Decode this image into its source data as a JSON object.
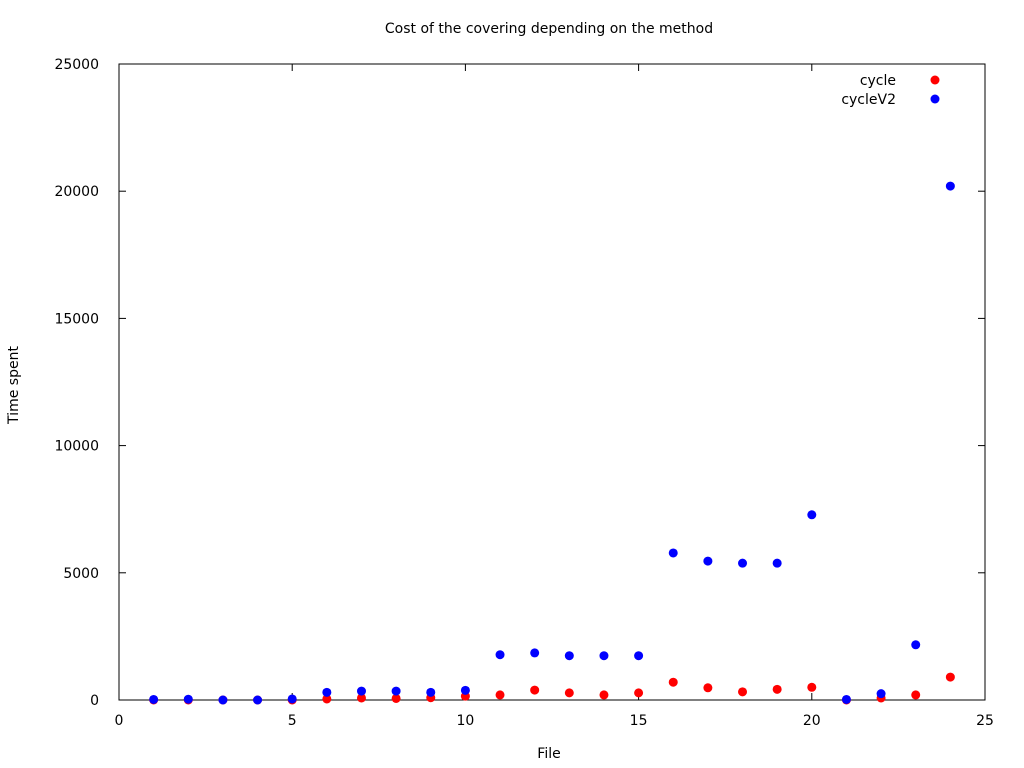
{
  "chart_data": {
    "type": "scatter",
    "title": "Cost of the covering depending on the method",
    "xlabel": "File",
    "ylabel": "Time spent",
    "xlim": [
      0,
      25
    ],
    "ylim": [
      0,
      25000
    ],
    "x_ticks": [
      0,
      5,
      10,
      15,
      20,
      25
    ],
    "y_ticks": [
      0,
      5000,
      10000,
      15000,
      20000,
      25000
    ],
    "grid": false,
    "legend_position": "top-right",
    "series": [
      {
        "name": "cycle",
        "color": "#ff0000",
        "x": [
          1,
          2,
          3,
          4,
          5,
          6,
          7,
          8,
          9,
          10,
          11,
          12,
          13,
          14,
          15,
          16,
          17,
          18,
          19,
          20,
          21,
          22,
          23,
          24
        ],
        "y": [
          0,
          0,
          0,
          0,
          0,
          40,
          80,
          60,
          90,
          150,
          200,
          390,
          280,
          200,
          280,
          700,
          480,
          320,
          420,
          500,
          0,
          80,
          200,
          900
        ]
      },
      {
        "name": "cycleV2",
        "color": "#0000ff",
        "x": [
          1,
          2,
          3,
          4,
          5,
          6,
          7,
          8,
          9,
          10,
          11,
          12,
          13,
          14,
          15,
          16,
          17,
          18,
          19,
          20,
          21,
          22,
          23,
          24
        ],
        "y": [
          20,
          30,
          0,
          0,
          40,
          300,
          350,
          350,
          300,
          380,
          1780,
          1850,
          1740,
          1740,
          1740,
          5780,
          5460,
          5380,
          5380,
          7280,
          20,
          250,
          2170,
          20200
        ]
      }
    ]
  }
}
